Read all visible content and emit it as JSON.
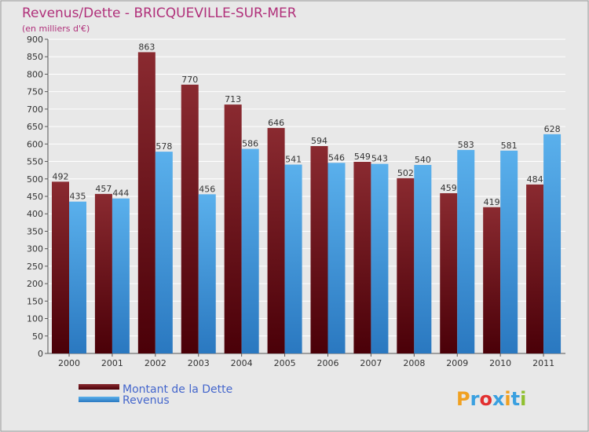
{
  "chart_data": {
    "type": "bar",
    "title": "Revenus/Dette - BRICQUEVILLE-SUR-MER",
    "subtitle": "(en milliers d'€)",
    "categories": [
      "2000",
      "2001",
      "2002",
      "2003",
      "2004",
      "2005",
      "2006",
      "2007",
      "2008",
      "2009",
      "2010",
      "2011"
    ],
    "series": [
      {
        "name": "Montant de la Dette",
        "color": "#7a1820",
        "values": [
          492,
          457,
          863,
          770,
          713,
          646,
          594,
          549,
          502,
          459,
          419,
          484
        ]
      },
      {
        "name": "Revenus",
        "color": "#4aa0e0",
        "values": [
          435,
          444,
          578,
          456,
          586,
          541,
          546,
          543,
          540,
          583,
          581,
          628
        ]
      }
    ],
    "ylim": [
      0,
      900
    ],
    "yticks": [
      0,
      50,
      100,
      150,
      200,
      250,
      300,
      350,
      400,
      450,
      500,
      550,
      600,
      650,
      700,
      750,
      800,
      850,
      900
    ],
    "grid": true,
    "legend_position": "bottom-left"
  },
  "logo": {
    "letters": [
      "P",
      "r",
      "o",
      "x",
      "i",
      "t",
      "i"
    ],
    "colors": [
      "#f0a020",
      "#3aa0e0",
      "#e23030",
      "#3aa0e0",
      "#f0a020",
      "#3aa0e0",
      "#90c030"
    ]
  }
}
